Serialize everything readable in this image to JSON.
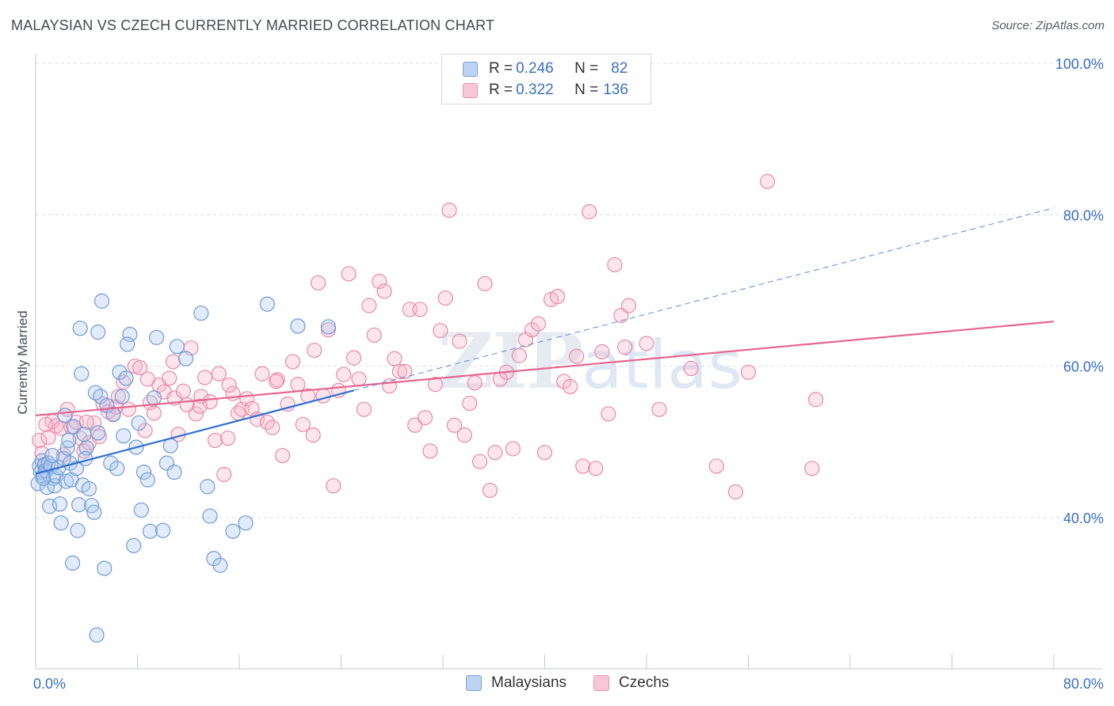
{
  "header": {
    "title": "MALAYSIAN VS CZECH CURRENTLY MARRIED CORRELATION CHART",
    "source": "Source: ZipAtlas.com"
  },
  "legend_stats": {
    "malaysians": {
      "r_label": "R = ",
      "r_value": "0.246",
      "n_label": "N = ",
      "n_value": "82"
    },
    "czechs": {
      "r_label": "R = ",
      "r_value": "0.322",
      "n_label": "N = ",
      "n_value": "136"
    }
  },
  "bottom_legend": {
    "malaysians": "Malaysians",
    "czechs": "Czechs"
  },
  "watermark": {
    "zip": "ZIP",
    "atlas": "atlas"
  },
  "colors": {
    "blue_fill": "#a9c6ee",
    "blue_stroke": "#6f9bd8",
    "blue_line": "#2f6fcf",
    "pink_fill": "#f5b5c8",
    "pink_stroke": "#e98aa8",
    "pink_line": "#e5668f",
    "axis_label": "#3a6fc4",
    "grid": "#d9dde2"
  },
  "chart_data": {
    "type": "scatter",
    "title": "MALAYSIAN VS CZECH CURRENTLY MARRIED CORRELATION CHART",
    "ylabel": "Currently Married",
    "xlabel": "",
    "xlim": [
      0,
      80
    ],
    "ylim": [
      20,
      103
    ],
    "x_tick_labels": [
      {
        "value": 0,
        "label": "0.0%"
      },
      {
        "value": 80,
        "label": "80.0%"
      }
    ],
    "y_tick_labels": [
      {
        "value": 100,
        "label": "100.0%"
      },
      {
        "value": 80,
        "label": "80.0%"
      },
      {
        "value": 60,
        "label": "60.0%"
      },
      {
        "value": 40,
        "label": "40.0%"
      }
    ],
    "x_minor_ticks": [
      8,
      16,
      24,
      32,
      40,
      48,
      56,
      64,
      72
    ],
    "grid": true,
    "legend_position": "top-center",
    "series": [
      {
        "name": "Malaysians",
        "color": "#6f9bd8",
        "r": 0.246,
        "n": 82,
        "trend": {
          "x": [
            0,
            25
          ],
          "y": [
            45.8,
            56.8
          ],
          "style": "solid"
        },
        "trend_extension": {
          "x": [
            25,
            80
          ],
          "y": [
            56.8,
            80.9
          ],
          "style": "dashed"
        },
        "points": [
          [
            0.2,
            44.5
          ],
          [
            0.3,
            46.8
          ],
          [
            0.4,
            46.0
          ],
          [
            0.5,
            47.5
          ],
          [
            0.6,
            45.5
          ],
          [
            0.7,
            47.0
          ],
          [
            0.8,
            46.2
          ],
          [
            0.9,
            44.0
          ],
          [
            1.0,
            47.2
          ],
          [
            1.1,
            41.5
          ],
          [
            1.2,
            46.8
          ],
          [
            1.4,
            45.2
          ],
          [
            1.5,
            44.2
          ],
          [
            1.6,
            45.5
          ],
          [
            1.8,
            46.6
          ],
          [
            1.9,
            41.8
          ],
          [
            2.0,
            39.3
          ],
          [
            2.2,
            47.8
          ],
          [
            2.4,
            44.8
          ],
          [
            2.5,
            49.2
          ],
          [
            2.6,
            50.2
          ],
          [
            2.7,
            47.2
          ],
          [
            2.8,
            45.0
          ],
          [
            2.9,
            34.0
          ],
          [
            3.0,
            52.0
          ],
          [
            3.2,
            46.5
          ],
          [
            3.3,
            38.3
          ],
          [
            3.4,
            41.7
          ],
          [
            3.6,
            59.0
          ],
          [
            3.7,
            44.3
          ],
          [
            3.8,
            51.0
          ],
          [
            4.0,
            49.2
          ],
          [
            4.2,
            43.8
          ],
          [
            4.4,
            41.6
          ],
          [
            4.6,
            40.7
          ],
          [
            4.7,
            56.5
          ],
          [
            4.9,
            51.2
          ],
          [
            5.1,
            56.0
          ],
          [
            5.4,
            33.3
          ],
          [
            5.6,
            54.8
          ],
          [
            5.9,
            47.2
          ],
          [
            6.1,
            53.6
          ],
          [
            6.4,
            46.5
          ],
          [
            6.6,
            59.2
          ],
          [
            6.8,
            56.0
          ],
          [
            7.1,
            58.4
          ],
          [
            7.4,
            64.2
          ],
          [
            7.7,
            36.3
          ],
          [
            7.9,
            49.3
          ],
          [
            8.1,
            52.5
          ],
          [
            8.3,
            41.0
          ],
          [
            8.5,
            46.0
          ],
          [
            8.8,
            45.0
          ],
          [
            9.0,
            38.2
          ],
          [
            9.5,
            63.8
          ],
          [
            10.0,
            38.3
          ],
          [
            10.3,
            47.2
          ],
          [
            10.6,
            49.5
          ],
          [
            10.9,
            46.0
          ],
          [
            11.1,
            62.6
          ],
          [
            11.8,
            61.0
          ],
          [
            13.0,
            67.0
          ],
          [
            13.5,
            44.1
          ],
          [
            13.7,
            40.2
          ],
          [
            14.0,
            34.6
          ],
          [
            14.5,
            33.7
          ],
          [
            15.5,
            38.2
          ],
          [
            16.5,
            39.3
          ],
          [
            18.2,
            68.2
          ],
          [
            20.6,
            65.3
          ],
          [
            23.0,
            65.2
          ],
          [
            4.8,
            24.5
          ],
          [
            3.5,
            65.0
          ],
          [
            5.2,
            68.6
          ],
          [
            7.2,
            62.9
          ],
          [
            4.9,
            64.5
          ],
          [
            2.3,
            53.5
          ],
          [
            1.3,
            48.2
          ],
          [
            0.6,
            45.2
          ],
          [
            3.9,
            47.8
          ],
          [
            6.9,
            50.8
          ],
          [
            9.3,
            55.8
          ]
        ]
      },
      {
        "name": "Czechs",
        "color": "#e98aa8",
        "r": 0.322,
        "n": 136,
        "trend": {
          "x": [
            0,
            80
          ],
          "y": [
            53.5,
            65.9
          ],
          "style": "solid"
        },
        "points": [
          [
            0.3,
            50.2
          ],
          [
            0.5,
            48.5
          ],
          [
            0.7,
            46.8
          ],
          [
            1.0,
            50.6
          ],
          [
            1.3,
            52.7
          ],
          [
            1.6,
            52.1
          ],
          [
            2.0,
            51.8
          ],
          [
            2.5,
            54.3
          ],
          [
            2.8,
            52.0
          ],
          [
            3.2,
            52.6
          ],
          [
            3.5,
            50.5
          ],
          [
            3.8,
            48.8
          ],
          [
            4.2,
            49.9
          ],
          [
            4.6,
            52.5
          ],
          [
            5.0,
            50.7
          ],
          [
            5.3,
            55.0
          ],
          [
            5.7,
            54.0
          ],
          [
            6.1,
            53.7
          ],
          [
            6.5,
            56.0
          ],
          [
            6.9,
            57.9
          ],
          [
            7.3,
            54.3
          ],
          [
            7.8,
            60.0
          ],
          [
            8.2,
            59.8
          ],
          [
            8.6,
            51.5
          ],
          [
            9.0,
            55.2
          ],
          [
            9.3,
            53.8
          ],
          [
            9.7,
            57.5
          ],
          [
            10.1,
            56.6
          ],
          [
            10.5,
            58.4
          ],
          [
            10.9,
            55.8
          ],
          [
            11.2,
            51.0
          ],
          [
            11.6,
            56.7
          ],
          [
            11.9,
            54.9
          ],
          [
            12.2,
            62.4
          ],
          [
            12.6,
            53.7
          ],
          [
            13.0,
            56.0
          ],
          [
            13.3,
            58.5
          ],
          [
            13.7,
            55.3
          ],
          [
            14.1,
            50.2
          ],
          [
            14.4,
            59.0
          ],
          [
            14.8,
            45.7
          ],
          [
            15.1,
            50.5
          ],
          [
            15.5,
            56.4
          ],
          [
            15.9,
            53.8
          ],
          [
            16.2,
            54.3
          ],
          [
            16.6,
            55.7
          ],
          [
            17.0,
            54.4
          ],
          [
            17.4,
            53.0
          ],
          [
            17.8,
            59.0
          ],
          [
            18.2,
            52.6
          ],
          [
            18.6,
            51.9
          ],
          [
            19.0,
            58.2
          ],
          [
            19.4,
            48.2
          ],
          [
            19.8,
            55.0
          ],
          [
            20.2,
            60.6
          ],
          [
            20.6,
            57.6
          ],
          [
            21.0,
            52.3
          ],
          [
            21.4,
            56.1
          ],
          [
            21.8,
            50.9
          ],
          [
            22.2,
            71.0
          ],
          [
            22.6,
            56.1
          ],
          [
            23.0,
            64.8
          ],
          [
            23.4,
            44.2
          ],
          [
            23.8,
            56.8
          ],
          [
            24.2,
            58.9
          ],
          [
            24.6,
            72.2
          ],
          [
            25.0,
            61.1
          ],
          [
            25.4,
            58.3
          ],
          [
            25.8,
            54.3
          ],
          [
            26.2,
            68.0
          ],
          [
            26.6,
            64.1
          ],
          [
            27.0,
            71.2
          ],
          [
            27.4,
            69.9
          ],
          [
            27.8,
            57.4
          ],
          [
            28.2,
            61.0
          ],
          [
            28.6,
            59.3
          ],
          [
            29.0,
            59.3
          ],
          [
            29.4,
            67.5
          ],
          [
            29.8,
            52.2
          ],
          [
            30.2,
            67.5
          ],
          [
            30.6,
            53.2
          ],
          [
            31.0,
            48.8
          ],
          [
            31.4,
            57.6
          ],
          [
            31.8,
            64.7
          ],
          [
            32.2,
            69.0
          ],
          [
            32.5,
            80.6
          ],
          [
            32.9,
            52.2
          ],
          [
            33.3,
            63.3
          ],
          [
            33.7,
            50.9
          ],
          [
            34.1,
            55.1
          ],
          [
            34.5,
            57.8
          ],
          [
            34.9,
            47.4
          ],
          [
            35.3,
            70.9
          ],
          [
            35.7,
            43.6
          ],
          [
            36.1,
            48.6
          ],
          [
            36.5,
            58.3
          ],
          [
            37.0,
            59.2
          ],
          [
            37.5,
            49.1
          ],
          [
            38.0,
            61.4
          ],
          [
            38.5,
            63.5
          ],
          [
            39.0,
            64.8
          ],
          [
            39.5,
            65.6
          ],
          [
            40.0,
            48.6
          ],
          [
            40.5,
            68.8
          ],
          [
            41.0,
            69.2
          ],
          [
            41.5,
            58.0
          ],
          [
            42.0,
            57.3
          ],
          [
            42.5,
            61.3
          ],
          [
            43.0,
            46.8
          ],
          [
            43.5,
            80.4
          ],
          [
            44.0,
            46.5
          ],
          [
            44.5,
            61.9
          ],
          [
            45.0,
            53.7
          ],
          [
            45.5,
            73.4
          ],
          [
            46.0,
            66.7
          ],
          [
            46.3,
            62.5
          ],
          [
            46.6,
            68.0
          ],
          [
            48.0,
            63.0
          ],
          [
            49.0,
            54.3
          ],
          [
            51.5,
            59.7
          ],
          [
            53.5,
            46.8
          ],
          [
            55.0,
            43.4
          ],
          [
            56.0,
            59.2
          ],
          [
            57.5,
            84.4
          ],
          [
            61.0,
            46.5
          ],
          [
            61.3,
            55.6
          ],
          [
            0.8,
            52.3
          ],
          [
            2.2,
            48.3
          ],
          [
            4.0,
            52.6
          ],
          [
            6.3,
            54.6
          ],
          [
            8.8,
            58.3
          ],
          [
            10.8,
            60.6
          ],
          [
            12.9,
            54.7
          ],
          [
            15.2,
            57.5
          ],
          [
            18.9,
            58.0
          ],
          [
            21.9,
            62.1
          ]
        ]
      }
    ]
  }
}
